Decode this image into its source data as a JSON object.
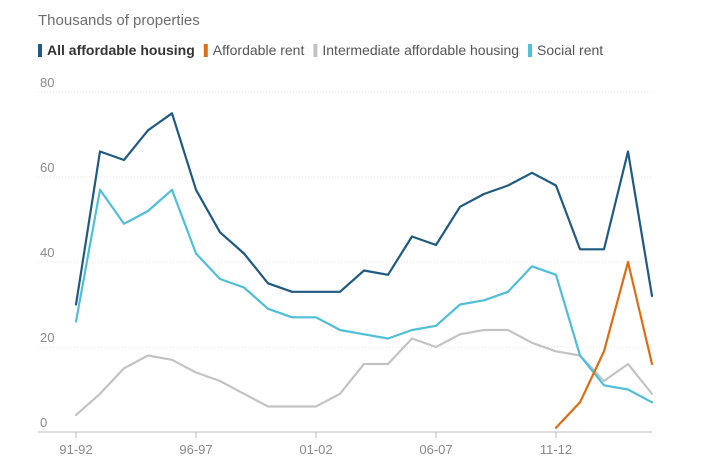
{
  "chart_data": {
    "type": "line",
    "unit_label": "Thousands of properties",
    "ylim": [
      0,
      80
    ],
    "y_ticks": [
      "80",
      "60",
      "40",
      "20",
      "0"
    ],
    "y_tick_values": [
      80,
      60,
      40,
      20,
      0
    ],
    "x_tick_labels": [
      "91-92",
      "96-97",
      "01-02",
      "06-07",
      "11-12"
    ],
    "x_tick_indices": [
      0,
      5,
      10,
      15,
      20
    ],
    "x": [
      "91-92",
      "92-93",
      "93-94",
      "94-95",
      "95-96",
      "96-97",
      "97-98",
      "98-99",
      "99-00",
      "00-01",
      "01-02",
      "02-03",
      "03-04",
      "04-05",
      "05-06",
      "06-07",
      "07-08",
      "08-09",
      "09-10",
      "10-11",
      "11-12",
      "12-13",
      "13-14",
      "14-15",
      "15-16"
    ],
    "series": [
      {
        "name": "All affordable housing",
        "color": "#1f5a83",
        "bold": true,
        "values": [
          30,
          66,
          64,
          71,
          75,
          57,
          47,
          42,
          35,
          33,
          33,
          33,
          38,
          37,
          46,
          44,
          53,
          56,
          58,
          61,
          58,
          43,
          43,
          66,
          32
        ]
      },
      {
        "name": "Affordable rent",
        "color": "#e06c12",
        "bold": false,
        "values": [
          null,
          null,
          null,
          null,
          null,
          null,
          null,
          null,
          null,
          null,
          null,
          null,
          null,
          null,
          null,
          null,
          null,
          null,
          null,
          null,
          1,
          7,
          19,
          40,
          16
        ]
      },
      {
        "name": "Intermediate affordable housing",
        "color": "#c3c3c3",
        "bold": false,
        "values": [
          4,
          9,
          15,
          18,
          17,
          14,
          12,
          9,
          6,
          6,
          6,
          9,
          16,
          16,
          22,
          20,
          23,
          24,
          24,
          21,
          19,
          18,
          12,
          16,
          9
        ]
      },
      {
        "name": "Social rent",
        "color": "#4fbfd8",
        "bold": false,
        "values": [
          26,
          57,
          49,
          52,
          57,
          42,
          36,
          34,
          29,
          27,
          27,
          24,
          23,
          22,
          24,
          25,
          30,
          31,
          33,
          39,
          37,
          18,
          11,
          10,
          7
        ]
      }
    ]
  }
}
